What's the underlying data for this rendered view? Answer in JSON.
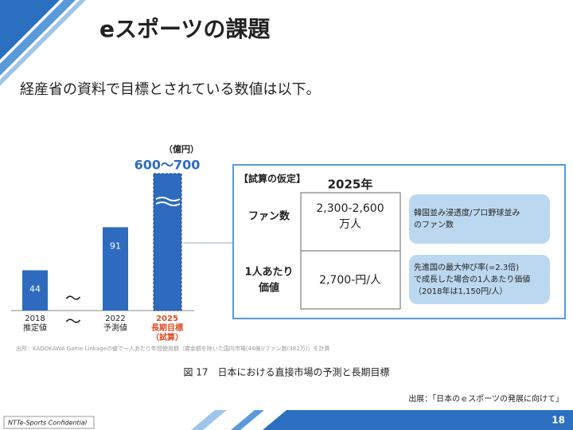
{
  "header": {
    "title": "eスポーツの課題"
  },
  "subtitle": "経産省の資料で目標とされている数値は以下。",
  "figure": {
    "chart_data": {
      "type": "bar",
      "unit": "（億円）",
      "color": "#2e6bbf",
      "categories": [
        [
          "2018",
          "推定値"
        ],
        [
          "2022",
          "予測値"
        ],
        [
          "2025",
          "長期目標",
          "（試算）"
        ]
      ],
      "values": [
        44,
        91,
        null
      ],
      "annotation": "600〜700"
    },
    "note": "出所：KADOKAWA Game Linkageの値で一人あたり年間使用額（賞金額を除いた国内市場(44億)/ファン数(382万)）を計算",
    "table": {
      "heading": "【試算の仮定】",
      "column": "2025年",
      "rows": [
        {
          "label": [
            "ファン数"
          ],
          "value": [
            "2,300-2,600",
            "万人"
          ],
          "note": [
            "韓国並み浸透度/プロ野球並み",
            "のファン数"
          ]
        },
        {
          "label": [
            "1人あたり",
            "価値"
          ],
          "value": [
            "2,700-円/人"
          ],
          "note": [
            "先進国の最大伸び率(=2.3倍)",
            "で成長した場合の1人あたり価値",
            "（2018年は1,150円/人）"
          ]
        }
      ]
    },
    "caption": "図 17　日本における直接市場の予測と長期目標"
  },
  "source": "出展：「日本のｅスポーツの発展に向けて」",
  "footer": {
    "confidential": "NTTe-Sports Confidential",
    "page": "18"
  }
}
